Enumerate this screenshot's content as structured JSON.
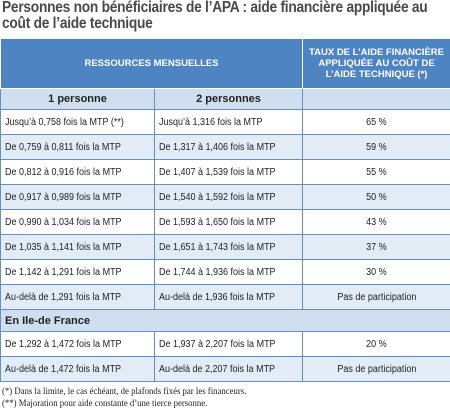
{
  "title": "Personnes non bénéficiaires de l’APA : aide financière appliquée au coût de l’aide technique",
  "header": {
    "resources": "RESSOURCES MENSUELLES",
    "rate": "TAUX DE L’AIDE FINANCIÈRE APPLIQUÉE AU COÛT DE L’AIDE TECHNIQUE (*)"
  },
  "subheader": {
    "one_person": "1 personne",
    "two_persons": "2 personnes"
  },
  "rows": [
    {
      "one": "Jusqu’à 0,758 fois la MTP (**)",
      "two": "Jusqu’à 1,316 fois la MTP",
      "rate": "65 %"
    },
    {
      "one": "De 0,759 à 0,811 fois la MTP",
      "two": "De 1,317 à 1,406 fois la MTP",
      "rate": "59 %"
    },
    {
      "one": "De 0,812 à 0,916 fois la MTP",
      "two": "De 1,407 à 1,539 fois la MTP",
      "rate": "55 %"
    },
    {
      "one": "De 0,917 à 0,989 fois la MTP",
      "two": "De 1,540 à 1,592 fois la MTP",
      "rate": "50 %"
    },
    {
      "one": "De 0,990 à 1,034 fois la MTP",
      "two": "De 1,593 à 1,650 fois la MTP",
      "rate": "43 %"
    },
    {
      "one": "De 1,035 à 1,141 fois la MTP",
      "two": "De 1,651 à 1,743 fois la MTP",
      "rate": "37 %"
    },
    {
      "one": "De 1,142 à 1,291 fois la MTP",
      "two": "De 1,744 à 1,936 fois la MTP",
      "rate": "30 %"
    },
    {
      "one": "Au-delà de 1,291 fois la MTP",
      "two": "Au-delà de 1,936 fois la MTP",
      "rate": "Pas de participation"
    }
  ],
  "region_label": "En Ile-de France",
  "region_rows": [
    {
      "one": "De 1,292 à 1,472 fois la MTP",
      "two": "De 1,937 à 2,207 fois la MTP",
      "rate": "20 %"
    },
    {
      "one": "Au-delà de 1,472 fois la MTP",
      "two": "Au-delà de 2,207 fois la MTP",
      "rate": "Pas de participation"
    }
  ],
  "notes": [
    "(*) Dans la limite, le cas échéant, de plafonds fixés par les financeurs.",
    "(**) Majoration pour aide constante d’une tierce personne."
  ]
}
